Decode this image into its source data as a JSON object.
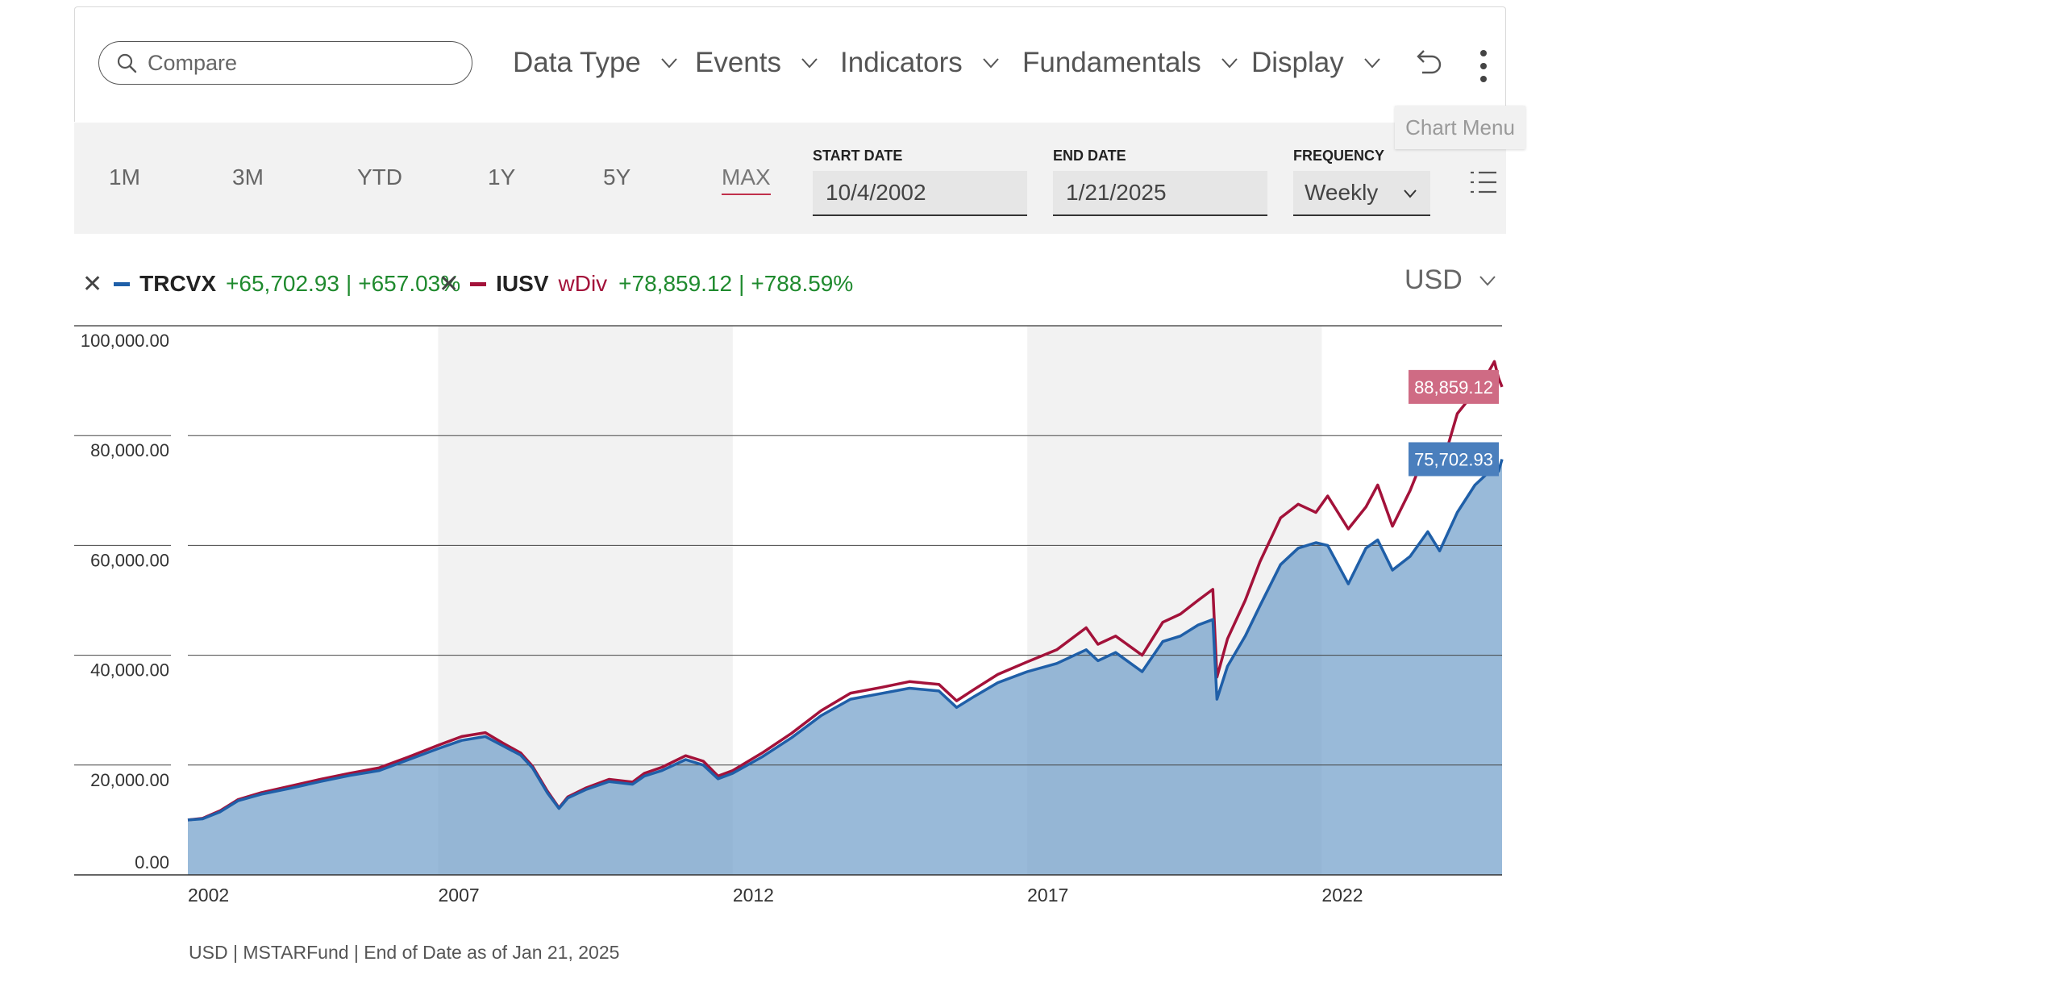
{
  "search": {
    "placeholder": "Compare"
  },
  "menus": [
    "Data Type",
    "Events",
    "Indicators",
    "Fundamentals",
    "Display"
  ],
  "tooltip": "Chart Menu",
  "periods": [
    "1M",
    "3M",
    "YTD",
    "1Y",
    "5Y",
    "MAX"
  ],
  "active_period": "MAX",
  "fields": {
    "start_label": "START DATE",
    "start_value": "10/4/2002",
    "end_label": "END DATE",
    "end_value": "1/21/2025",
    "freq_label": "FREQUENCY",
    "freq_value": "Weekly"
  },
  "legend": {
    "s1": {
      "symbol": "TRCVX",
      "change": "+65,702.93",
      "sep": "|",
      "pct": "+657.03%",
      "color": "#1f5fa8"
    },
    "s2": {
      "symbol": "IUSV",
      "tag": "wDiv",
      "change": "+78,859.12",
      "sep": "|",
      "pct": "+788.59%",
      "color": "#a3123a"
    }
  },
  "currency": "USD",
  "footer": "USD | MSTARFund | End of Date as of Jan 21, 2025",
  "icons": {
    "search": "search-icon",
    "undo": "undo-icon",
    "more": "more-vertical-icon",
    "list": "list-icon",
    "close": "close-icon",
    "chevron": "chevron-down-icon"
  },
  "chart_data": {
    "type": "line",
    "title": "",
    "xlabel": "",
    "ylabel": "",
    "x_ticks": [
      "2002",
      "2007",
      "2012",
      "2017",
      "2022"
    ],
    "x_tick_values": [
      2002.75,
      2007.0,
      2012.0,
      2017.0,
      2022.0
    ],
    "xlim": [
      2002.75,
      2025.06
    ],
    "y_ticks": [
      "0.00",
      "20,000.00",
      "40,000.00",
      "60,000.00",
      "80,000.00",
      "100,000.00"
    ],
    "y_tick_values": [
      0,
      20000,
      40000,
      60000,
      80000,
      100000
    ],
    "ylim": [
      0,
      100000
    ],
    "shaded_bands": [
      [
        2007.0,
        2012.0
      ],
      [
        2017.0,
        2022.0
      ]
    ],
    "end_labels": [
      "88,859.12",
      "75,702.93"
    ],
    "series": [
      {
        "name": "TRCVX",
        "color": "#1f5fa8",
        "fill": true,
        "end_label": "75,702.93",
        "x": [
          2002.75,
          2003.0,
          2003.3,
          2003.6,
          2004.0,
          2004.5,
          2005.0,
          2005.5,
          2006.0,
          2006.5,
          2007.0,
          2007.4,
          2007.8,
          2008.1,
          2008.4,
          2008.6,
          2008.85,
          2009.05,
          2009.2,
          2009.5,
          2009.9,
          2010.3,
          2010.5,
          2010.8,
          2011.2,
          2011.5,
          2011.75,
          2012.0,
          2012.5,
          2013.0,
          2013.5,
          2014.0,
          2014.5,
          2015.0,
          2015.5,
          2015.8,
          2016.1,
          2016.5,
          2017.0,
          2017.5,
          2018.0,
          2018.2,
          2018.5,
          2018.95,
          2019.3,
          2019.6,
          2019.9,
          2020.15,
          2020.22,
          2020.4,
          2020.7,
          2020.95,
          2021.3,
          2021.6,
          2021.9,
          2022.1,
          2022.45,
          2022.75,
          2022.95,
          2023.2,
          2023.5,
          2023.8,
          2024.0,
          2024.3,
          2024.6,
          2024.8,
          2024.93,
          2025.0,
          2025.06
        ],
        "values": [
          10000,
          10200,
          11500,
          13500,
          14700,
          15800,
          17000,
          18100,
          19000,
          21000,
          23000,
          24500,
          25200,
          23500,
          21800,
          19500,
          15000,
          12100,
          14000,
          15500,
          17000,
          16500,
          18000,
          19000,
          21000,
          20000,
          17500,
          18500,
          21500,
          25000,
          29000,
          32000,
          33000,
          34000,
          33500,
          30500,
          32500,
          35000,
          37000,
          38500,
          41000,
          39000,
          40500,
          37000,
          42500,
          43500,
          45500,
          46500,
          32000,
          38000,
          43500,
          49000,
          56500,
          59500,
          60500,
          60000,
          53000,
          59500,
          61000,
          55500,
          58000,
          62500,
          59000,
          66000,
          71000,
          73000,
          76500,
          73500,
          75703
        ]
      },
      {
        "name": "IUSV",
        "color": "#a3123a",
        "fill": false,
        "end_label": "88,859.12",
        "x": [
          2002.75,
          2003.0,
          2003.3,
          2003.6,
          2004.0,
          2004.5,
          2005.0,
          2005.5,
          2006.0,
          2006.5,
          2007.0,
          2007.4,
          2007.8,
          2008.1,
          2008.4,
          2008.6,
          2008.85,
          2009.05,
          2009.2,
          2009.5,
          2009.9,
          2010.3,
          2010.5,
          2010.8,
          2011.2,
          2011.5,
          2011.75,
          2012.0,
          2012.5,
          2013.0,
          2013.5,
          2014.0,
          2014.5,
          2015.0,
          2015.5,
          2015.8,
          2016.1,
          2016.5,
          2017.0,
          2017.5,
          2018.0,
          2018.2,
          2018.5,
          2018.95,
          2019.3,
          2019.6,
          2019.9,
          2020.15,
          2020.22,
          2020.4,
          2020.7,
          2020.95,
          2021.3,
          2021.6,
          2021.9,
          2022.1,
          2022.45,
          2022.75,
          2022.95,
          2023.2,
          2023.5,
          2023.8,
          2024.0,
          2024.3,
          2024.6,
          2024.8,
          2024.93,
          2025.0,
          2025.06
        ],
        "values": [
          10000,
          10300,
          11700,
          13700,
          15000,
          16200,
          17400,
          18500,
          19500,
          21500,
          23600,
          25200,
          25900,
          24000,
          22200,
          19800,
          15300,
          12200,
          14200,
          15800,
          17400,
          16900,
          18500,
          19600,
          21700,
          20700,
          18000,
          19000,
          22200,
          25800,
          29900,
          33100,
          34100,
          35200,
          34700,
          31700,
          33800,
          36500,
          38800,
          41000,
          45000,
          42000,
          43500,
          40000,
          46000,
          47500,
          50000,
          52000,
          36000,
          43000,
          50000,
          57000,
          65000,
          67500,
          66000,
          69000,
          63000,
          67000,
          71000,
          63500,
          70000,
          78000,
          73000,
          84000,
          88000,
          91000,
          93500,
          90500,
          88859
        ]
      }
    ]
  }
}
